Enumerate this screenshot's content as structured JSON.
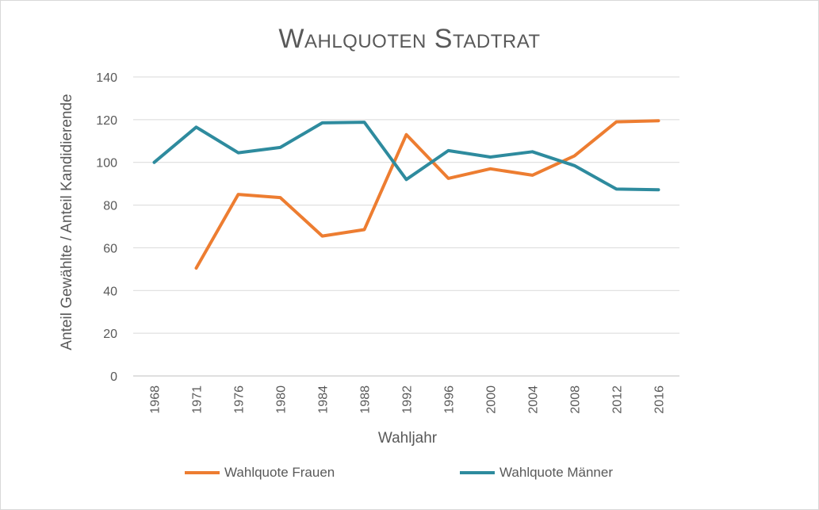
{
  "chart_data": {
    "type": "line",
    "title": "Wahlquoten Stadtrat",
    "xlabel": "Wahljahr",
    "ylabel": "Anteil Gewählte / Anteil Kandidierende",
    "categories": [
      "1968",
      "1971",
      "1976",
      "1980",
      "1984",
      "1988",
      "1992",
      "1996",
      "2000",
      "2004",
      "2008",
      "2012",
      "2016"
    ],
    "ylim": [
      0,
      140
    ],
    "yticks": [
      0,
      20,
      40,
      60,
      80,
      100,
      120,
      140
    ],
    "grid": true,
    "legend_position": "bottom",
    "series": [
      {
        "name": "Wahlquote Frauen",
        "color": "#ED7D31",
        "values": [
          null,
          50.5,
          85,
          83.5,
          65.5,
          68.5,
          113,
          92.5,
          97,
          94,
          103,
          119,
          119.5
        ]
      },
      {
        "name": "Wahlquote Männer",
        "color": "#2E8B9E",
        "values": [
          100,
          116.5,
          104.5,
          107,
          118.5,
          118.8,
          92,
          105.5,
          102.5,
          105,
          98.5,
          87.5,
          87.2
        ]
      }
    ]
  }
}
